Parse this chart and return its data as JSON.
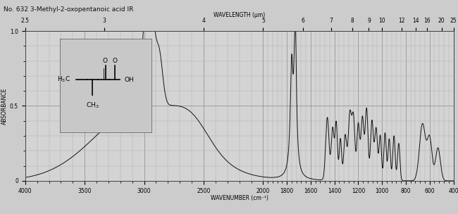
{
  "title": "No. 632 3-Methyl-2-oxopentanoic acid IR",
  "xlabel": "WAVENUMBER (cm⁻¹)",
  "ylabel": "ABSORBANCE",
  "wavelength_label": "WAVELENGTH (μm)",
  "top_ticks": [
    2.5,
    3,
    4,
    5,
    6,
    7,
    8,
    9,
    10,
    12,
    14,
    16,
    20,
    25
  ],
  "bottom_ticks": [
    4000,
    3500,
    3000,
    2500,
    2000,
    1800,
    1600,
    1400,
    1200,
    1000,
    800,
    600,
    400
  ],
  "ylim": [
    0.0,
    1.0
  ],
  "bg_color": "#c8c8c8",
  "plot_bg": "#d4d4d4",
  "grid_major_color": "#888888",
  "grid_minor_color": "#aaaaaa",
  "line_color": "#111111",
  "title_color": "#111111",
  "mol_box_color": "#c0c0c0"
}
